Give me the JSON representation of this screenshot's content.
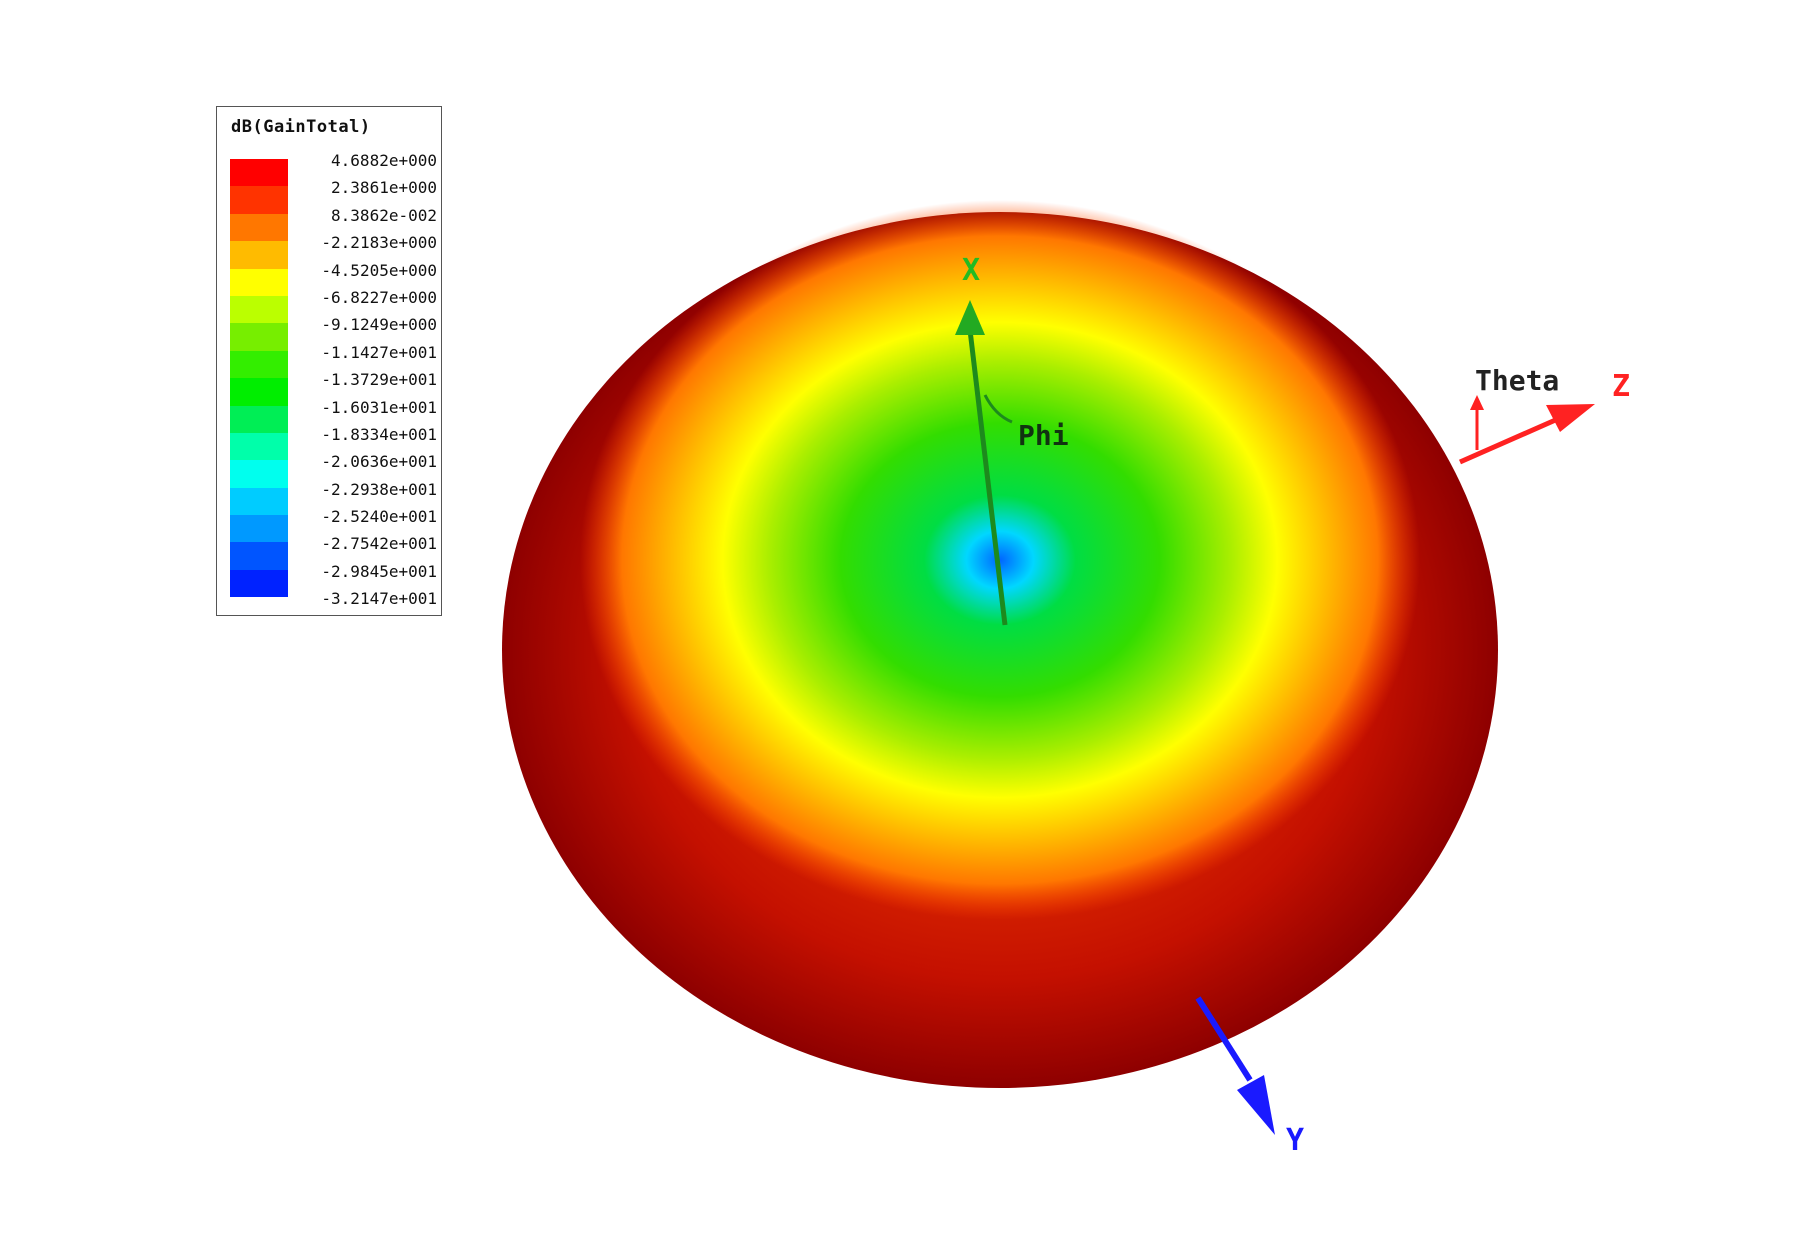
{
  "chart_data": {
    "type": "3d-radiation-pattern",
    "quantity": "dB(GainTotal)",
    "colorbar": {
      "title": "dB(GainTotal)",
      "ticks": [
        "4.6882e+000",
        "2.3861e+000",
        "8.3862e-002",
        "-2.2183e+000",
        "-4.5205e+000",
        "-6.8227e+000",
        "-9.1249e+000",
        "-1.1427e+001",
        "-1.3729e+001",
        "-1.6031e+001",
        "-1.8334e+001",
        "-2.0636e+001",
        "-2.2938e+001",
        "-2.5240e+001",
        "-2.7542e+001",
        "-2.9845e+001",
        "-3.2147e+001"
      ],
      "colors": [
        "#ff0000",
        "#ff3300",
        "#ff7700",
        "#ffbb00",
        "#ffff00",
        "#bbff00",
        "#77ee00",
        "#33ee00",
        "#00ee00",
        "#00ee55",
        "#00ffaa",
        "#00ffee",
        "#00ccff",
        "#0099ff",
        "#0055ff",
        "#0022ff",
        "#0000ff"
      ],
      "max": 4.6882,
      "min": -32.147
    },
    "axes": [
      {
        "name": "X",
        "color": "#22bb22"
      },
      {
        "name": "Y",
        "color": "#1a1aff"
      },
      {
        "name": "Z",
        "color": "#ff2222"
      }
    ],
    "angle_labels": [
      "Theta",
      "Phi"
    ]
  }
}
